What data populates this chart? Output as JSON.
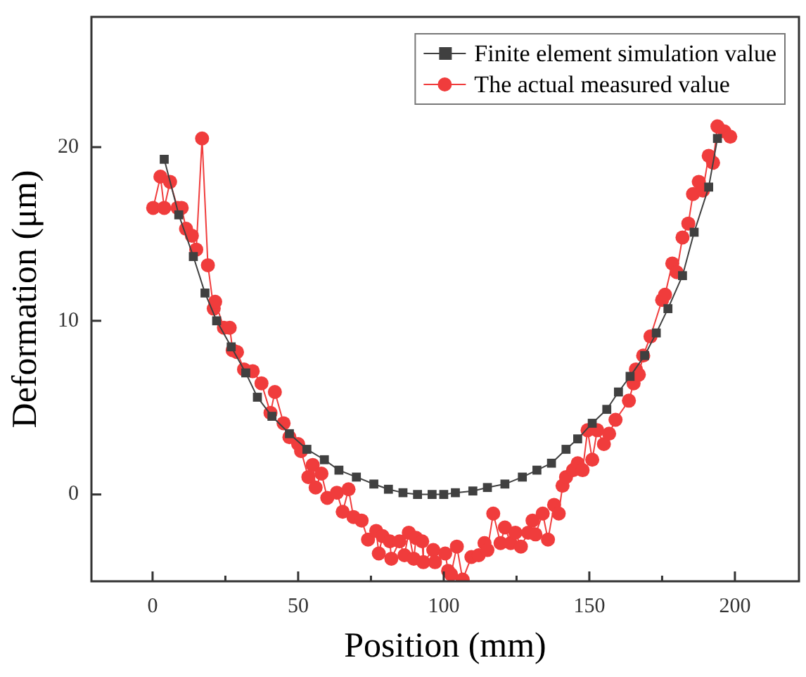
{
  "chart_data": {
    "type": "line",
    "xlabel": "Position (mm)",
    "ylabel": "Deformation (μm)",
    "xlim": [
      -21,
      222
    ],
    "xticks": [
      0,
      {
        "value": 25,
        "label": null
      },
      50,
      {
        "value": 75,
        "label": null
      },
      100,
      {
        "value": 125,
        "label": null
      },
      150,
      {
        "value": 175,
        "label": null
      },
      200
    ],
    "ylim": [
      -5,
      27.5
    ],
    "yticks": [
      0,
      10,
      20
    ],
    "grid": false,
    "legend": "top right",
    "series": [
      {
        "name": "Finite element simulation value",
        "color": "#404040",
        "marker": "square",
        "x": [
          4,
          9,
          14,
          18,
          22,
          27,
          32,
          36,
          41,
          47,
          53,
          59,
          64,
          70,
          76,
          81,
          86,
          91,
          96,
          100,
          104,
          110,
          115,
          121,
          127,
          132,
          137,
          142,
          146,
          151,
          156,
          160,
          164,
          169,
          173,
          177,
          182,
          186,
          191,
          194
        ],
        "values": [
          19.3,
          16.1,
          13.7,
          11.6,
          10.0,
          8.5,
          7.0,
          5.6,
          4.5,
          3.5,
          2.6,
          2.0,
          1.4,
          1.0,
          0.6,
          0.3,
          0.1,
          0,
          0,
          0,
          0.1,
          0.2,
          0.4,
          0.6,
          1.0,
          1.4,
          1.8,
          2.6,
          3.2,
          4.1,
          4.9,
          5.9,
          6.8,
          8.0,
          9.3,
          10.7,
          12.6,
          15.1,
          17.7,
          20.5
        ]
      },
      {
        "name": "The actual measured value",
        "color": "#f03c3c",
        "marker": "circle",
        "x": [
          0.2,
          2.7,
          4,
          6,
          8.6,
          10,
          11.5,
          13.5,
          15,
          17,
          19,
          21,
          21.5,
          24.5,
          26.5,
          27.5,
          29,
          31.4,
          34.4,
          37.4,
          40.5,
          42,
          45,
          47,
          50,
          51,
          53.5,
          55,
          56,
          58,
          60,
          63.3,
          65.3,
          67.3,
          69,
          71.8,
          74,
          76.8,
          77.7,
          79,
          81.5,
          82,
          84.8,
          86.5,
          88,
          89.7,
          90.5,
          92.6,
          93,
          96.4,
          97,
          100.5,
          101.5,
          102.5,
          104.5,
          106.5,
          109.5,
          112,
          114,
          115,
          117,
          119.5,
          121,
          123,
          124.6,
          126.5,
          129,
          130.5,
          131.5,
          134,
          135.8,
          137.9,
          139.5,
          140.8,
          142,
          144.4,
          146,
          147.7,
          149.4,
          151,
          152.7,
          155,
          156.8,
          159,
          163.6,
          165.2,
          166,
          167,
          168.5,
          171,
          175,
          176,
          178.5,
          180,
          182,
          184,
          185.6,
          187.6,
          189,
          191,
          192.5,
          194,
          196.4,
          198.4
        ],
        "values": [
          16.5,
          18.3,
          16.5,
          18.0,
          16.5,
          16.5,
          15.3,
          14.9,
          14.1,
          20.5,
          13.2,
          10.7,
          11.1,
          9.6,
          9.6,
          8.3,
          8.2,
          7.2,
          7.1,
          6.4,
          4.7,
          5.9,
          4.1,
          3.3,
          2.9,
          2.5,
          1.0,
          1.7,
          0.4,
          1.2,
          -0.2,
          0.1,
          -1.0,
          0.3,
          -1.3,
          -1.5,
          -2.6,
          -2.1,
          -3.4,
          -2.4,
          -2.7,
          -3.7,
          -2.7,
          -3.5,
          -2.2,
          -3.7,
          -2.5,
          -2.7,
          -3.9,
          -3.2,
          -3.9,
          -3.4,
          -4.4,
          -4.6,
          -3.0,
          -4.9,
          -3.6,
          -3.5,
          -2.8,
          -3.2,
          -1.1,
          -2.8,
          -1.9,
          -2.8,
          -2.2,
          -3.0,
          -2.2,
          -1.5,
          -2.3,
          -1.1,
          -2.6,
          -0.6,
          -1.1,
          0.5,
          1.0,
          1.4,
          1.8,
          1.4,
          3.7,
          2.0,
          3.7,
          2.9,
          3.5,
          4.3,
          5.4,
          6.4,
          7.2,
          6.9,
          8.0,
          9.1,
          11.2,
          11.5,
          13.3,
          12.8,
          14.8,
          15.6,
          17.3,
          18.0,
          17.5,
          19.5,
          19.1,
          21.2,
          20.9,
          20.6
        ]
      }
    ]
  }
}
